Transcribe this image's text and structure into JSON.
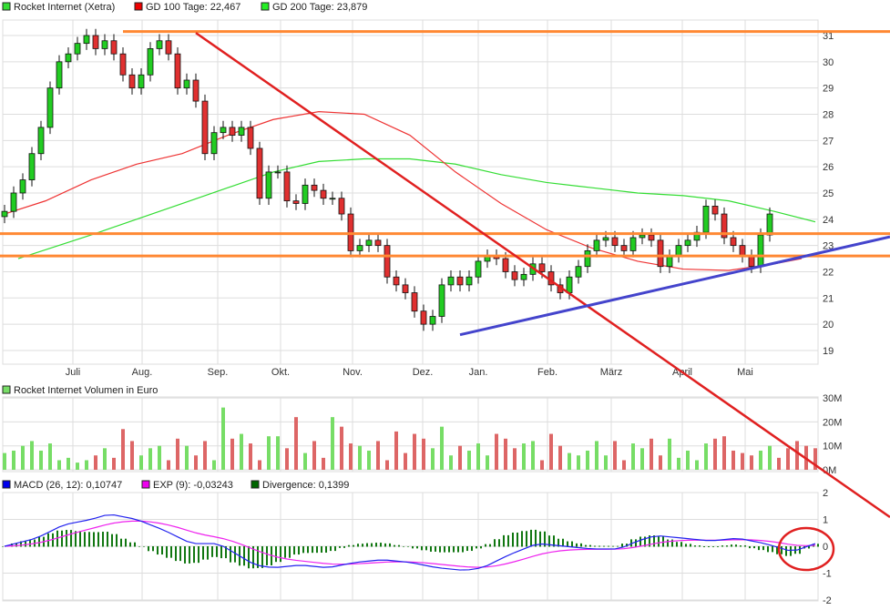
{
  "legend": {
    "price": "Rocket Internet (Xetra)",
    "gd100": "GD 100 Tage: 22,467",
    "gd200": "GD 200 Tage: 23,879",
    "volume": "Rocket Internet Volumen in Euro",
    "macd": "MACD (26, 12): 0,10747",
    "exp": "EXP (9): -0,03243",
    "divergence": "Divergence: 0,1399"
  },
  "colors": {
    "up": "#22cc22",
    "down": "#e03030",
    "gd100": "#ee3333",
    "gd200": "#33dd33",
    "orange": "#ff8833",
    "redTrend": "#e02020",
    "blueTrend": "#4444cc",
    "macd": "#2222ee",
    "exp": "#ee22ee",
    "divergence": "#117711",
    "volUp": "#77dd66",
    "volDown": "#dd6666"
  },
  "chart_data": [
    {
      "type": "candlestick",
      "ylim": [
        18.5,
        31.8
      ],
      "yticks": [
        19,
        20,
        21,
        22,
        23,
        24,
        25,
        26,
        27,
        28,
        29,
        30,
        31
      ],
      "month_ticks": [
        {
          "label": "Juli",
          "index": 7.5
        },
        {
          "label": "Aug.",
          "index": 15.1
        },
        {
          "label": "Sep.",
          "index": 23.4
        },
        {
          "label": "Okt.",
          "index": 30.3
        },
        {
          "label": "Nov.",
          "index": 38.2
        },
        {
          "label": "Dez.",
          "index": 45.9
        },
        {
          "label": "Jan.",
          "index": 52
        },
        {
          "label": "Feb.",
          "index": 59.6
        },
        {
          "label": "März",
          "index": 66.6
        },
        {
          "label": "April",
          "index": 74.4
        },
        {
          "label": "Mai",
          "index": 81.3
        }
      ],
      "close": [
        24.3,
        25,
        25.5,
        26.5,
        27.5,
        29,
        30,
        30.3,
        30.7,
        31,
        30.5,
        30.8,
        30.3,
        29.5,
        29,
        29.5,
        30.5,
        30.8,
        30.3,
        29,
        29.3,
        28.5,
        26.5,
        27.3,
        27.5,
        27.2,
        27.5,
        26.7,
        24.8,
        25.8,
        25.8,
        24.7,
        24.6,
        25.3,
        25.1,
        24.8,
        24.8,
        24.2,
        22.8,
        23,
        23.2,
        23,
        21.8,
        21.5,
        21.2,
        20.5,
        20,
        20.3,
        21.5,
        21.8,
        21.5,
        21.8,
        22.4,
        22.6,
        22.5,
        22,
        21.7,
        21.9,
        22.3,
        22,
        21.5,
        21.2,
        21.8,
        22.2,
        22.8,
        23.2,
        23.3,
        23,
        22.8,
        23.3,
        23.4,
        23.2,
        22.2,
        22.6,
        23,
        23.2,
        23.5,
        24.5,
        24.2,
        23.3,
        23,
        22.6,
        22.2,
        23.4,
        24.2
      ],
      "gd100": [
        [
          0,
          24.2
        ],
        [
          4.5,
          24.7
        ],
        [
          9.5,
          25.5
        ],
        [
          14.5,
          26.1
        ],
        [
          19.5,
          26.5
        ],
        [
          24.5,
          27.2
        ],
        [
          29.5,
          27.8
        ],
        [
          34.5,
          28.1
        ],
        [
          39.5,
          28
        ],
        [
          44.5,
          27.2
        ],
        [
          49.5,
          25.8
        ],
        [
          54.5,
          24.6
        ],
        [
          59.5,
          23.6
        ],
        [
          64.5,
          22.9
        ],
        [
          69.5,
          22.4
        ],
        [
          74.5,
          22.1
        ],
        [
          79.5,
          22.05
        ],
        [
          84.5,
          22.3
        ],
        [
          87.5,
          22.5
        ]
      ],
      "gd200": [
        [
          1.5,
          22.5
        ],
        [
          9.5,
          23.4
        ],
        [
          14.5,
          24
        ],
        [
          19.5,
          24.6
        ],
        [
          24.5,
          25.2
        ],
        [
          29.5,
          25.8
        ],
        [
          34.5,
          26.2
        ],
        [
          39.5,
          26.3
        ],
        [
          44.5,
          26.3
        ],
        [
          49.5,
          26.1
        ],
        [
          54.5,
          25.7
        ],
        [
          59.5,
          25.4
        ],
        [
          64.5,
          25.2
        ],
        [
          69.5,
          25
        ],
        [
          74.5,
          24.9
        ],
        [
          79.5,
          24.7
        ],
        [
          84.5,
          24.3
        ],
        [
          89,
          23.9
        ]
      ],
      "horizontal_lines": [
        {
          "price": 31.15,
          "from": 13
        },
        {
          "price": 23.45,
          "from": -0.5
        },
        {
          "price": 22.6,
          "from": -0.5
        }
      ],
      "trend_red": [
        [
          21,
          31.1
        ],
        [
          97.2,
          12.65
        ]
      ],
      "trend_blue": [
        [
          50,
          19.6
        ],
        [
          97.2,
          23.33
        ]
      ]
    },
    {
      "type": "bar",
      "ylim": [
        0,
        30
      ],
      "yticks": [
        "0M",
        "10M",
        "20M",
        "30M"
      ],
      "values": [
        7,
        8,
        10,
        12,
        8,
        11,
        4,
        5,
        3,
        4,
        6,
        9,
        5,
        17,
        12,
        6,
        9,
        10,
        4,
        13,
        10,
        6,
        12,
        4,
        26,
        13,
        15,
        11,
        4,
        14,
        14,
        9,
        22,
        7,
        12,
        5,
        22,
        18,
        11,
        10,
        8,
        12,
        4,
        16,
        7,
        15,
        13,
        9,
        18,
        6,
        10,
        8,
        11,
        6,
        15,
        13,
        9,
        11,
        12,
        4,
        15,
        10,
        7,
        6,
        8,
        12,
        6,
        12,
        4,
        11,
        9,
        13,
        6,
        13,
        5,
        8,
        4,
        11,
        13,
        14,
        8,
        7,
        6,
        8,
        10,
        5,
        9,
        12,
        10,
        9
      ]
    },
    {
      "type": "line",
      "ylim": [
        -2,
        2
      ],
      "yticks": [
        -2,
        -1,
        0,
        1,
        2
      ],
      "macd": [
        [
          0,
          0
        ],
        [
          3.5,
          0.3
        ],
        [
          6.5,
          0.8
        ],
        [
          9.5,
          1
        ],
        [
          11.5,
          1.2
        ],
        [
          14.5,
          1
        ],
        [
          17.5,
          0.6
        ],
        [
          20.5,
          0.1
        ],
        [
          23.5,
          0.1
        ],
        [
          25.5,
          -0.3
        ],
        [
          27.5,
          -0.7
        ],
        [
          29.5,
          -0.8
        ],
        [
          32.5,
          -0.7
        ],
        [
          35.5,
          -0.8
        ],
        [
          38.5,
          -0.6
        ],
        [
          41.5,
          -0.5
        ],
        [
          44.5,
          -0.6
        ],
        [
          47.5,
          -0.8
        ],
        [
          50.5,
          -0.9
        ],
        [
          52.5,
          -0.8
        ],
        [
          55.5,
          -0.3
        ],
        [
          58.5,
          0.1
        ],
        [
          61.5,
          0
        ],
        [
          64.5,
          -0.1
        ],
        [
          67.5,
          -0.1
        ],
        [
          69.5,
          0.2
        ],
        [
          71.5,
          0.4
        ],
        [
          74.5,
          0.3
        ],
        [
          77.5,
          0.2
        ],
        [
          80.5,
          0.3
        ],
        [
          83.5,
          0.1
        ],
        [
          86.5,
          -0.2
        ],
        [
          89,
          0.1
        ]
      ]
    }
  ]
}
